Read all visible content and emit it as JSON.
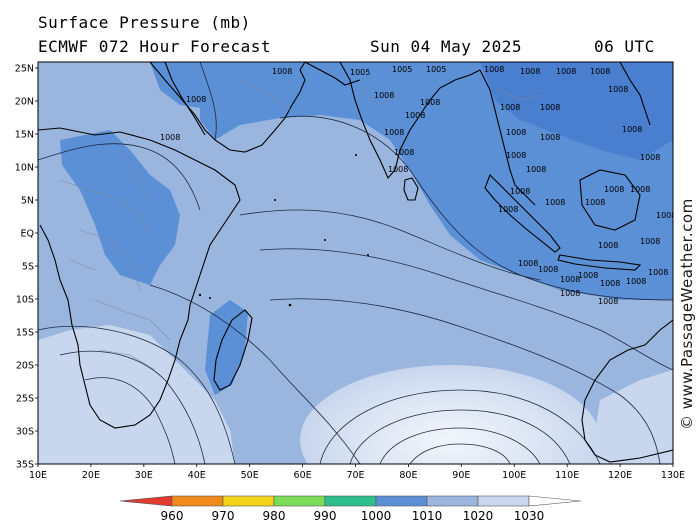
{
  "header": {
    "title": "Surface Pressure (mb)",
    "model_line": "ECMWF 072 Hour Forecast",
    "valid_date": "Sun 04 May 2025",
    "valid_time": "06 UTC"
  },
  "map": {
    "lat_labels": [
      "25N",
      "20N",
      "15N",
      "10N",
      "5N",
      "EQ",
      "5S",
      "10S",
      "15S",
      "20S",
      "25S",
      "30S",
      "35S"
    ],
    "lon_labels": [
      "10E",
      "20E",
      "30E",
      "40E",
      "50E",
      "60E",
      "70E",
      "80E",
      "90E",
      "100E",
      "110E",
      "120E",
      "130E"
    ],
    "isobar_label": "1008",
    "isobar_label_alt": "1005",
    "colors": {
      "below_1010": "#5b8fd6",
      "1010_1020": "#9ab6df",
      "1020_1030": "#c8d6ee",
      "above_1030": "#e8eef8",
      "coast": "#000000"
    }
  },
  "colorbar": {
    "ticks": [
      "960",
      "970",
      "980",
      "990",
      "1000",
      "1010",
      "1020",
      "1030"
    ],
    "colors": [
      "#e23a2e",
      "#f08a1c",
      "#f4d21a",
      "#7bdc5a",
      "#2fbf8f",
      "#5b8fd6",
      "#9ab6df",
      "#c8d6ee",
      "#ffffff"
    ]
  },
  "watermark": "© www.PassageWeather.com"
}
